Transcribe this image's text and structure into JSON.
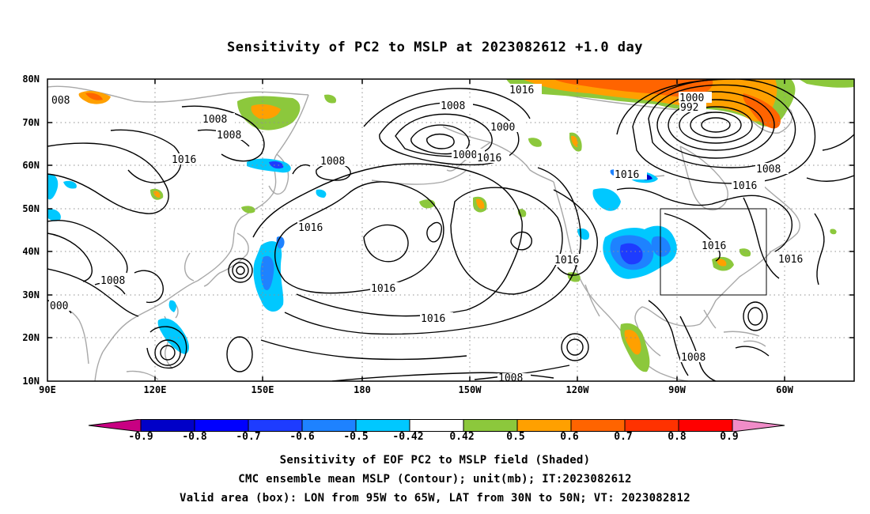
{
  "title": "Sensitivity of PC2 to MSLP at 2023082612 +1.0 day",
  "lat_labels": [
    "80N",
    "70N",
    "60N",
    "50N",
    "40N",
    "30N",
    "20N",
    "10N"
  ],
  "lon_labels": [
    "90E",
    "120E",
    "150E",
    "180",
    "150W",
    "120W",
    "90W",
    "60W"
  ],
  "contour_labels": [
    "008",
    "1008",
    "1008",
    "1016",
    "1008",
    "1016",
    "1008",
    "1000",
    "1000",
    "1016",
    "1016",
    "992",
    "1000",
    "1016",
    "1016",
    "1008",
    "1016",
    "1016",
    "1016",
    "1016",
    "1008",
    "000",
    "1016",
    "1016",
    "1008",
    "1008"
  ],
  "colorbar": {
    "labels": [
      "-0.9",
      "-0.8",
      "-0.7",
      "-0.6",
      "-0.5",
      "-0.42",
      "0.42",
      "0.5",
      "0.6",
      "0.7",
      "0.8",
      "0.9"
    ],
    "colors": [
      "#c80082",
      "#0000c8",
      "#0000ff",
      "#1e3cff",
      "#1e82ff",
      "#00c8ff",
      "#ffffff",
      "#8cc83c",
      "#ffa000",
      "#ff6400",
      "#ff3200",
      "#ff0000",
      "#f08cc8"
    ]
  },
  "valid_box": {
    "lon_from": "95W",
    "lon_to": "65W",
    "lat_from": "30N",
    "lat_to": "50N"
  },
  "captions": [
    "Sensitivity of EOF PC2 to MSLP field (Shaded)",
    "CMC ensemble mean MSLP (Contour); unit(mb); IT:2023082612",
    "Valid area (box): LON from 95W to 65W, LAT from 30N to 50N; VT: 2023082812"
  ]
}
